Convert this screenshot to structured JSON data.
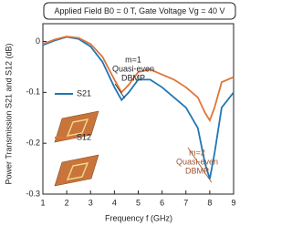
{
  "chart_data": {
    "type": "line",
    "title": "Applied Field B0 = 0 T, Gate Voltage Vg = 40 V",
    "x_label": "Frequency f (GHz)",
    "y_label": "Power Transmission S21 and S12 (dB)",
    "x": [
      1,
      1.5,
      2,
      2.5,
      3,
      3.5,
      4,
      4.3,
      4.6,
      5,
      5.5,
      6,
      6.5,
      7,
      7.5,
      7.8,
      8,
      8.2,
      8.5,
      9
    ],
    "series": [
      {
        "name": "S21",
        "color": "#1f77b4",
        "values": [
          -0.007,
          0.002,
          0.009,
          0.005,
          -0.01,
          -0.04,
          -0.09,
          -0.115,
          -0.1,
          -0.075,
          -0.075,
          -0.09,
          -0.11,
          -0.13,
          -0.17,
          -0.24,
          -0.27,
          -0.22,
          -0.13,
          -0.1
        ]
      },
      {
        "name": "S12",
        "color": "#e0743a",
        "values": [
          -0.005,
          0.004,
          0.01,
          0.007,
          -0.005,
          -0.03,
          -0.075,
          -0.1,
          -0.085,
          -0.06,
          -0.055,
          -0.065,
          -0.075,
          -0.09,
          -0.11,
          -0.14,
          -0.155,
          -0.13,
          -0.08,
          -0.07
        ]
      }
    ],
    "xlim": [
      1,
      9
    ],
    "xticks": [
      1,
      2,
      3,
      4,
      5,
      6,
      7,
      8,
      9
    ],
    "ylim": [
      -0.3,
      0.035
    ],
    "yticks": [
      0,
      -0.1,
      -0.2,
      -0.3
    ],
    "annotations": [
      {
        "lines": [
          "m=1",
          "Quasi-even",
          "DBMP"
        ],
        "color": "#222"
      },
      {
        "lines": [
          "m=2",
          "Quasi-even",
          "DBMP"
        ],
        "color": "#a0522d"
      }
    ]
  }
}
